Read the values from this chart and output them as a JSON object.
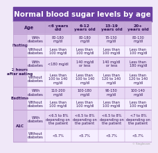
{
  "title": "Normal blood sugar levels by age",
  "title_bg": "#6b3fa0",
  "title_color": "#ffffff",
  "header_bg": "#c5a8d8",
  "header_color": "#3d1a5c",
  "col_headers": [
    "<6 years\nold",
    "6-12\nyears old",
    "13-19\nyears old",
    "20+\nyears old"
  ],
  "cell_data": [
    [
      "With\ndiabetes",
      "80-180\nmg/dl",
      "80-180\nmg/dl",
      "70-150\nmg/dl",
      "80-130\nmg/dl"
    ],
    [
      "Without\ndiabetes",
      "Less than\n100 mg/dl",
      "Less than\n100 mg/dl",
      "Less than\n100 mg/dl",
      "Less than\n100 mg/dl"
    ],
    [
      "With\ndiabetes",
      "<180 mg/dl",
      "140 mg/dl\nor less",
      "140 mg/dl\nor less",
      "Less than\n180 mg/dl"
    ],
    [
      "Without\ndiabetes",
      "Less than\n100 to 140\nmg/dl",
      "Less than\n100 to 140\nmg/dl",
      "Less than\n120 to 140\nmg/dl",
      "Less than\n120 to 140\nmg/dl"
    ],
    [
      "With\ndiabetes",
      "110-200\nmg/dl",
      "100-180\nmg/dl",
      "90-150\nmg/dl",
      "100-140\nmg/dl"
    ],
    [
      "Without\ndiabetes",
      "Less than\n100 mg/dl",
      "Less than\n100 mg/dl",
      "Less than\n100 mg/dl",
      "Less than\n100 mg/dl"
    ],
    [
      "With\ndiabetes",
      "<6.5 to 8%\ndepending on\nthe patient",
      "<6.5 to 8%\ndepending on\nthe patient",
      "<6.5 to 8%\ndepending on\nthe patient",
      "<7 to 8%\ndepending on\nthe patient"
    ],
    [
      "Without\ndiabetes",
      "<5.7%",
      "<5.7%",
      "<5.7%",
      "<5.7%"
    ]
  ],
  "sections": [
    {
      "name": "Fasting",
      "rows": [
        0,
        1
      ]
    },
    {
      "name": "2 hours\nafter eating",
      "rows": [
        2,
        3
      ]
    },
    {
      "name": "Bedtime",
      "rows": [
        4,
        5
      ]
    },
    {
      "name": "A1C",
      "rows": [
        6,
        7
      ]
    }
  ],
  "bg_color": "#f0e8f8",
  "section_label_bg": "#d8c0e8",
  "row_with_bg": "#e8d8f5",
  "row_without_bg": "#f5eeff",
  "border_color": "#c0a0d0",
  "text_dark": "#2c1050",
  "text_cell": "#2c1050",
  "footer_color": "#999999",
  "title_fontsize": 7.5,
  "header_fontsize": 4.2,
  "section_fontsize": 4.0,
  "sublabel_fontsize": 3.8,
  "cell_fontsize": 3.6
}
